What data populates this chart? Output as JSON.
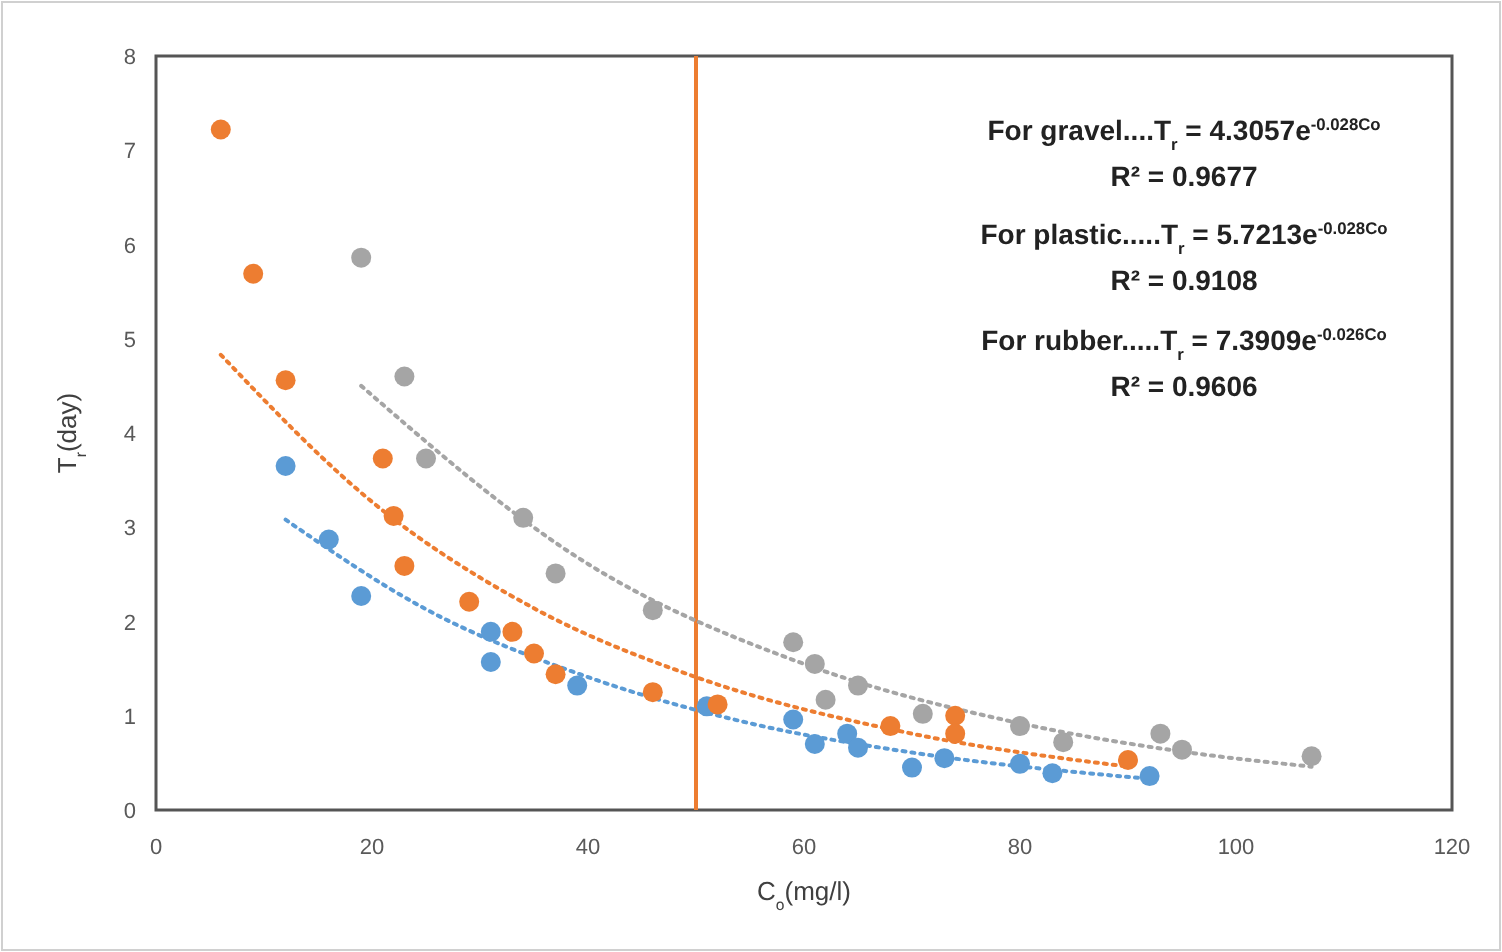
{
  "chart_data": {
    "type": "scatter",
    "xlabel": "C$_{o}$(mg/l)",
    "ylabel": "T$_{r}$(day)",
    "xlim": [
      0,
      120
    ],
    "xticks": [
      0,
      20,
      40,
      60,
      80,
      100,
      120
    ],
    "ylim": [
      0,
      8
    ],
    "yticks": [
      0,
      1,
      2,
      3,
      4,
      5,
      6,
      7,
      8
    ],
    "series": [
      {
        "marker": "circle",
        "color": "#5b9bd5",
        "x": [
          12,
          16,
          19,
          31,
          31,
          39,
          51,
          59,
          61,
          64,
          65,
          70,
          73,
          80,
          83,
          92
        ],
        "values": [
          3.65,
          2.87,
          2.27,
          1.89,
          1.57,
          1.32,
          1.1,
          0.96,
          0.7,
          0.81,
          0.66,
          0.45,
          0.55,
          0.49,
          0.39,
          0.36
        ]
      },
      {
        "marker": "circle",
        "color": "#ed7d31",
        "x": [
          6,
          9,
          12,
          21,
          22,
          23,
          29,
          33,
          35,
          37,
          46,
          52,
          68,
          74,
          74,
          90
        ],
        "values": [
          7.22,
          5.69,
          4.56,
          3.73,
          3.12,
          2.59,
          2.21,
          1.89,
          1.66,
          1.44,
          1.25,
          1.12,
          0.89,
          1.0,
          0.81,
          0.53
        ]
      },
      {
        "marker": "circle",
        "color": "#a5a5a5",
        "x": [
          19,
          23,
          25,
          34,
          37,
          46,
          59,
          61,
          62,
          65,
          71,
          80,
          84,
          93,
          95,
          107
        ],
        "values": [
          5.86,
          4.6,
          3.73,
          3.1,
          2.51,
          2.12,
          1.78,
          1.55,
          1.17,
          1.32,
          1.02,
          0.89,
          0.72,
          0.81,
          0.64,
          0.57
        ]
      },
      {
        "type": "line",
        "line_style": "dotted",
        "marker": "none",
        "color": "#5b9bd5",
        "x": [
          12,
          25,
          40,
          55,
          70,
          92
        ],
        "values": [
          3.08,
          2.13,
          1.41,
          0.92,
          0.61,
          0.33
        ]
      },
      {
        "type": "line",
        "line_style": "dotted",
        "marker": "none",
        "color": "#ed7d31",
        "x": [
          6,
          20,
          35,
          50,
          70,
          90
        ],
        "values": [
          4.83,
          3.27,
          2.14,
          1.41,
          0.81,
          0.46
        ]
      },
      {
        "type": "line",
        "line_style": "dotted",
        "marker": "none",
        "color": "#a5a5a5",
        "x": [
          19,
          40,
          60,
          80,
          95,
          107
        ],
        "values": [
          4.5,
          2.61,
          1.55,
          0.92,
          0.62,
          0.46
        ]
      }
    ],
    "ref_lines": [
      {
        "axis": "x",
        "value": 50,
        "label": null,
        "color": "#ed7d31",
        "line_style": "solid"
      }
    ],
    "annotations": [
      "For gravel....T$_{r}$ = 4.3057e$^{-0.028Co}$",
      "R² = 0.9677",
      "For plastic.....T$_{r}$ = 5.7213e$^{-0.028Co}$",
      "R² = 0.9108",
      "For rubber.....T$_{r}$ = 7.3909e$^{-0.026Co}$",
      "R² = 0.9606"
    ]
  }
}
